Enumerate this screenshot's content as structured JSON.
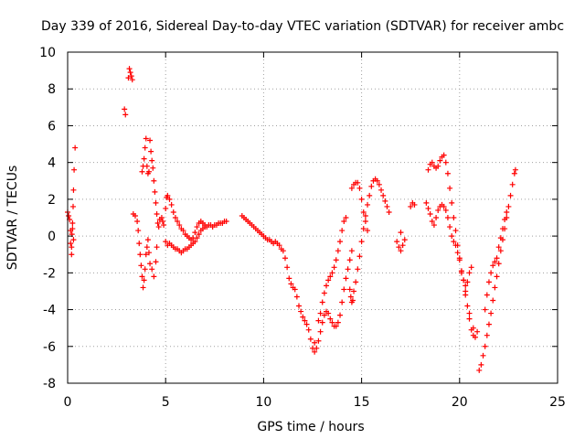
{
  "chart_data": {
    "type": "scatter",
    "title": "Day 339 of 2016, Sidereal Day-to-day VTEC variation (SDTVAR) for receiver ambc",
    "xlabel": "GPS time / hours",
    "ylabel": "SDTVAR / TECUs",
    "xlim": [
      0,
      25
    ],
    "ylim": [
      -8,
      10
    ],
    "x_ticks": [
      0,
      5,
      10,
      15,
      20,
      25
    ],
    "y_ticks": [
      -8,
      -6,
      -4,
      -2,
      0,
      2,
      4,
      6,
      8,
      10
    ],
    "grid": true,
    "marker": "+",
    "series": [
      {
        "name": "SDTVAR",
        "color": "#ff0000",
        "points": [
          [
            0.0,
            1.3
          ],
          [
            0.05,
            1.1
          ],
          [
            0.1,
            0.9
          ],
          [
            0.15,
            0.3
          ],
          [
            0.15,
            -0.4
          ],
          [
            0.2,
            -1.0
          ],
          [
            0.2,
            -0.6
          ],
          [
            0.22,
            0.1
          ],
          [
            0.25,
            0.7
          ],
          [
            0.28,
            1.6
          ],
          [
            0.3,
            2.5
          ],
          [
            0.33,
            3.6
          ],
          [
            0.38,
            4.8
          ],
          [
            0.3,
            -0.2
          ],
          [
            0.25,
            0.4
          ],
          [
            2.9,
            6.9
          ],
          [
            2.95,
            6.6
          ],
          [
            3.1,
            8.6
          ],
          [
            3.15,
            9.1
          ],
          [
            3.2,
            8.9
          ],
          [
            3.25,
            8.7
          ],
          [
            3.3,
            8.5
          ],
          [
            3.35,
            1.2
          ],
          [
            3.45,
            1.1
          ],
          [
            3.55,
            0.8
          ],
          [
            3.6,
            0.3
          ],
          [
            3.65,
            -0.4
          ],
          [
            3.7,
            -1.0
          ],
          [
            3.75,
            -1.6
          ],
          [
            3.8,
            -2.2
          ],
          [
            3.85,
            -2.8
          ],
          [
            3.9,
            -2.4
          ],
          [
            3.95,
            -1.8
          ],
          [
            4.0,
            -1.0
          ],
          [
            4.05,
            -0.6
          ],
          [
            4.1,
            -0.2
          ],
          [
            4.15,
            -0.9
          ],
          [
            4.2,
            -1.5
          ],
          [
            4.3,
            -1.8
          ],
          [
            4.4,
            -2.2
          ],
          [
            4.5,
            -1.4
          ],
          [
            4.55,
            -0.6
          ],
          [
            3.8,
            3.5
          ],
          [
            3.85,
            3.8
          ],
          [
            3.9,
            4.2
          ],
          [
            3.95,
            4.8
          ],
          [
            4.0,
            5.3
          ],
          [
            4.05,
            3.8
          ],
          [
            4.1,
            3.4
          ],
          [
            4.15,
            3.5
          ],
          [
            4.2,
            5.2
          ],
          [
            4.25,
            4.6
          ],
          [
            4.3,
            4.1
          ],
          [
            4.35,
            3.7
          ],
          [
            4.4,
            3.0
          ],
          [
            4.45,
            2.4
          ],
          [
            4.5,
            1.8
          ],
          [
            4.55,
            1.2
          ],
          [
            4.6,
            0.7
          ],
          [
            4.65,
            0.5
          ],
          [
            4.7,
            0.9
          ],
          [
            4.8,
            1.0
          ],
          [
            4.85,
            0.8
          ],
          [
            4.9,
            0.6
          ],
          [
            5.0,
            1.5
          ],
          [
            5.05,
            2.1
          ],
          [
            5.1,
            2.2
          ],
          [
            5.2,
            2.0
          ],
          [
            5.3,
            1.7
          ],
          [
            5.4,
            1.3
          ],
          [
            5.5,
            1.0
          ],
          [
            5.6,
            0.8
          ],
          [
            5.7,
            0.6
          ],
          [
            5.8,
            0.4
          ],
          [
            5.9,
            0.3
          ],
          [
            6.0,
            0.1
          ],
          [
            6.1,
            0.0
          ],
          [
            6.2,
            -0.1
          ],
          [
            6.3,
            -0.2
          ],
          [
            6.4,
            -0.1
          ],
          [
            6.5,
            0.2
          ],
          [
            6.6,
            0.5
          ],
          [
            6.7,
            0.7
          ],
          [
            6.8,
            0.8
          ],
          [
            6.9,
            0.7
          ],
          [
            7.0,
            0.6
          ],
          [
            5.0,
            -0.3
          ],
          [
            5.1,
            -0.5
          ],
          [
            5.2,
            -0.4
          ],
          [
            5.3,
            -0.5
          ],
          [
            5.4,
            -0.6
          ],
          [
            5.5,
            -0.7
          ],
          [
            5.6,
            -0.7
          ],
          [
            5.7,
            -0.8
          ],
          [
            5.8,
            -0.9
          ],
          [
            5.9,
            -0.8
          ],
          [
            6.0,
            -0.7
          ],
          [
            6.1,
            -0.7
          ],
          [
            6.2,
            -0.6
          ],
          [
            6.3,
            -0.5
          ],
          [
            6.4,
            -0.4
          ],
          [
            6.5,
            -0.3
          ],
          [
            6.6,
            -0.1
          ],
          [
            6.7,
            0.1
          ],
          [
            6.8,
            0.3
          ],
          [
            6.9,
            0.4
          ],
          [
            7.0,
            0.5
          ],
          [
            7.1,
            0.5
          ],
          [
            7.2,
            0.6
          ],
          [
            7.3,
            0.6
          ],
          [
            7.4,
            0.5
          ],
          [
            7.5,
            0.6
          ],
          [
            7.6,
            0.6
          ],
          [
            7.7,
            0.7
          ],
          [
            7.8,
            0.7
          ],
          [
            7.9,
            0.7
          ],
          [
            8.0,
            0.8
          ],
          [
            8.1,
            0.8
          ],
          [
            8.9,
            1.1
          ],
          [
            9.0,
            1.0
          ],
          [
            9.1,
            0.9
          ],
          [
            9.2,
            0.8
          ],
          [
            9.3,
            0.7
          ],
          [
            9.4,
            0.6
          ],
          [
            9.5,
            0.5
          ],
          [
            9.6,
            0.4
          ],
          [
            9.7,
            0.3
          ],
          [
            9.8,
            0.2
          ],
          [
            9.9,
            0.1
          ],
          [
            10.0,
            0.0
          ],
          [
            10.1,
            -0.1
          ],
          [
            10.2,
            -0.2
          ],
          [
            10.3,
            -0.2
          ],
          [
            10.4,
            -0.3
          ],
          [
            10.5,
            -0.4
          ],
          [
            10.6,
            -0.3
          ],
          [
            10.7,
            -0.4
          ],
          [
            10.8,
            -0.5
          ],
          [
            10.9,
            -0.7
          ],
          [
            11.0,
            -0.8
          ],
          [
            11.1,
            -1.2
          ],
          [
            11.2,
            -1.7
          ],
          [
            11.3,
            -2.3
          ],
          [
            11.4,
            -2.6
          ],
          [
            11.5,
            -2.8
          ],
          [
            11.6,
            -2.9
          ],
          [
            11.7,
            -3.3
          ],
          [
            11.8,
            -3.8
          ],
          [
            11.9,
            -4.1
          ],
          [
            12.0,
            -4.4
          ],
          [
            12.1,
            -4.6
          ],
          [
            12.2,
            -4.8
          ],
          [
            12.3,
            -5.1
          ],
          [
            12.4,
            -5.6
          ],
          [
            12.5,
            -6.1
          ],
          [
            12.6,
            -6.3
          ],
          [
            12.7,
            -6.1
          ],
          [
            12.8,
            -5.7
          ],
          [
            12.9,
            -5.2
          ],
          [
            13.0,
            -4.7
          ],
          [
            13.1,
            -4.3
          ],
          [
            13.2,
            -4.1
          ],
          [
            13.3,
            -4.2
          ],
          [
            13.4,
            -4.5
          ],
          [
            13.5,
            -4.7
          ],
          [
            13.6,
            -4.9
          ],
          [
            13.7,
            -4.9
          ],
          [
            13.8,
            -4.7
          ],
          [
            13.9,
            -4.3
          ],
          [
            14.0,
            -3.6
          ],
          [
            14.1,
            -2.9
          ],
          [
            14.2,
            -2.3
          ],
          [
            14.3,
            -1.8
          ],
          [
            14.4,
            -1.3
          ],
          [
            14.5,
            -0.8
          ],
          [
            12.6,
            -5.8
          ],
          [
            12.8,
            -4.6
          ],
          [
            12.9,
            -4.2
          ],
          [
            13.0,
            -3.6
          ],
          [
            13.1,
            -3.1
          ],
          [
            13.2,
            -2.7
          ],
          [
            13.3,
            -2.4
          ],
          [
            13.4,
            -2.2
          ],
          [
            13.5,
            -2.0
          ],
          [
            13.6,
            -1.7
          ],
          [
            13.7,
            -1.3
          ],
          [
            13.8,
            -0.8
          ],
          [
            13.9,
            -0.3
          ],
          [
            14.0,
            0.3
          ],
          [
            14.1,
            0.8
          ],
          [
            14.2,
            1.0
          ],
          [
            14.4,
            -2.9
          ],
          [
            14.45,
            -3.3
          ],
          [
            14.5,
            -3.6
          ],
          [
            14.55,
            -3.5
          ],
          [
            14.6,
            -3.0
          ],
          [
            14.7,
            -2.5
          ],
          [
            14.8,
            -1.8
          ],
          [
            14.9,
            -1.1
          ],
          [
            15.0,
            -0.3
          ],
          [
            15.1,
            0.4
          ],
          [
            15.2,
            1.1
          ],
          [
            15.3,
            1.7
          ],
          [
            15.4,
            2.2
          ],
          [
            15.5,
            2.7
          ],
          [
            15.6,
            3.0
          ],
          [
            15.7,
            3.1
          ],
          [
            15.8,
            3.0
          ],
          [
            15.9,
            2.8
          ],
          [
            16.0,
            2.5
          ],
          [
            16.1,
            2.2
          ],
          [
            16.2,
            1.9
          ],
          [
            16.3,
            1.6
          ],
          [
            16.4,
            1.3
          ],
          [
            14.5,
            2.6
          ],
          [
            14.6,
            2.8
          ],
          [
            14.7,
            2.9
          ],
          [
            14.8,
            2.9
          ],
          [
            14.9,
            2.6
          ],
          [
            15.0,
            2.0
          ],
          [
            15.1,
            1.3
          ],
          [
            15.2,
            0.8
          ],
          [
            15.3,
            0.3
          ],
          [
            16.8,
            -0.3
          ],
          [
            16.9,
            -0.6
          ],
          [
            17.0,
            -0.8
          ],
          [
            17.1,
            -0.5
          ],
          [
            17.2,
            -0.2
          ],
          [
            17.0,
            0.2
          ],
          [
            17.5,
            1.6
          ],
          [
            17.6,
            1.8
          ],
          [
            17.7,
            1.7
          ],
          [
            18.3,
            1.8
          ],
          [
            18.4,
            1.5
          ],
          [
            18.5,
            1.2
          ],
          [
            18.6,
            0.8
          ],
          [
            18.7,
            0.6
          ],
          [
            18.8,
            1.0
          ],
          [
            18.9,
            1.4
          ],
          [
            19.0,
            1.6
          ],
          [
            19.1,
            1.7
          ],
          [
            19.2,
            1.6
          ],
          [
            19.3,
            1.4
          ],
          [
            19.4,
            1.0
          ],
          [
            19.5,
            0.5
          ],
          [
            19.6,
            0.0
          ],
          [
            19.7,
            -0.3
          ],
          [
            19.8,
            -0.5
          ],
          [
            19.9,
            -0.9
          ],
          [
            20.0,
            -1.3
          ],
          [
            20.1,
            -1.9
          ],
          [
            20.2,
            -2.4
          ],
          [
            20.3,
            -2.7
          ],
          [
            20.4,
            -2.5
          ],
          [
            20.5,
            -2.0
          ],
          [
            20.6,
            -1.7
          ],
          [
            18.4,
            3.6
          ],
          [
            18.5,
            3.9
          ],
          [
            18.6,
            4.0
          ],
          [
            18.7,
            3.8
          ],
          [
            18.8,
            3.7
          ],
          [
            18.9,
            3.8
          ],
          [
            19.0,
            4.1
          ],
          [
            19.1,
            4.3
          ],
          [
            19.2,
            4.4
          ],
          [
            19.3,
            4.0
          ],
          [
            19.4,
            3.4
          ],
          [
            19.5,
            2.6
          ],
          [
            19.6,
            1.8
          ],
          [
            19.7,
            1.0
          ],
          [
            19.8,
            0.3
          ],
          [
            19.9,
            -0.5
          ],
          [
            20.0,
            -1.2
          ],
          [
            20.1,
            -1.9
          ],
          [
            20.2,
            -2.4
          ],
          [
            20.3,
            -3.0
          ],
          [
            20.4,
            -3.8
          ],
          [
            20.5,
            -4.5
          ],
          [
            20.6,
            -5.1
          ],
          [
            20.7,
            -5.4
          ],
          [
            20.8,
            -5.5
          ],
          [
            20.9,
            -5.2
          ],
          [
            20.1,
            -2.0
          ],
          [
            20.3,
            -3.2
          ],
          [
            20.5,
            -4.2
          ],
          [
            20.7,
            -5.0
          ],
          [
            21.0,
            -7.3
          ],
          [
            21.1,
            -7.0
          ],
          [
            21.2,
            -6.5
          ],
          [
            21.3,
            -6.0
          ],
          [
            21.4,
            -5.4
          ],
          [
            21.5,
            -4.8
          ],
          [
            21.6,
            -4.2
          ],
          [
            21.7,
            -3.5
          ],
          [
            21.8,
            -2.8
          ],
          [
            21.9,
            -2.2
          ],
          [
            22.0,
            -1.5
          ],
          [
            22.1,
            -0.8
          ],
          [
            22.2,
            -0.2
          ],
          [
            22.3,
            0.4
          ],
          [
            22.4,
            1.0
          ],
          [
            22.5,
            1.6
          ],
          [
            22.6,
            2.2
          ],
          [
            22.7,
            2.8
          ],
          [
            22.8,
            3.4
          ],
          [
            22.85,
            3.6
          ],
          [
            21.3,
            -4.0
          ],
          [
            21.4,
            -3.2
          ],
          [
            21.5,
            -2.5
          ],
          [
            21.6,
            -2.0
          ],
          [
            21.7,
            -1.6
          ],
          [
            21.8,
            -1.4
          ],
          [
            21.9,
            -1.2
          ],
          [
            22.0,
            -0.6
          ],
          [
            22.1,
            -0.1
          ],
          [
            22.2,
            0.4
          ],
          [
            22.3,
            0.9
          ],
          [
            22.4,
            1.3
          ]
        ]
      }
    ]
  }
}
